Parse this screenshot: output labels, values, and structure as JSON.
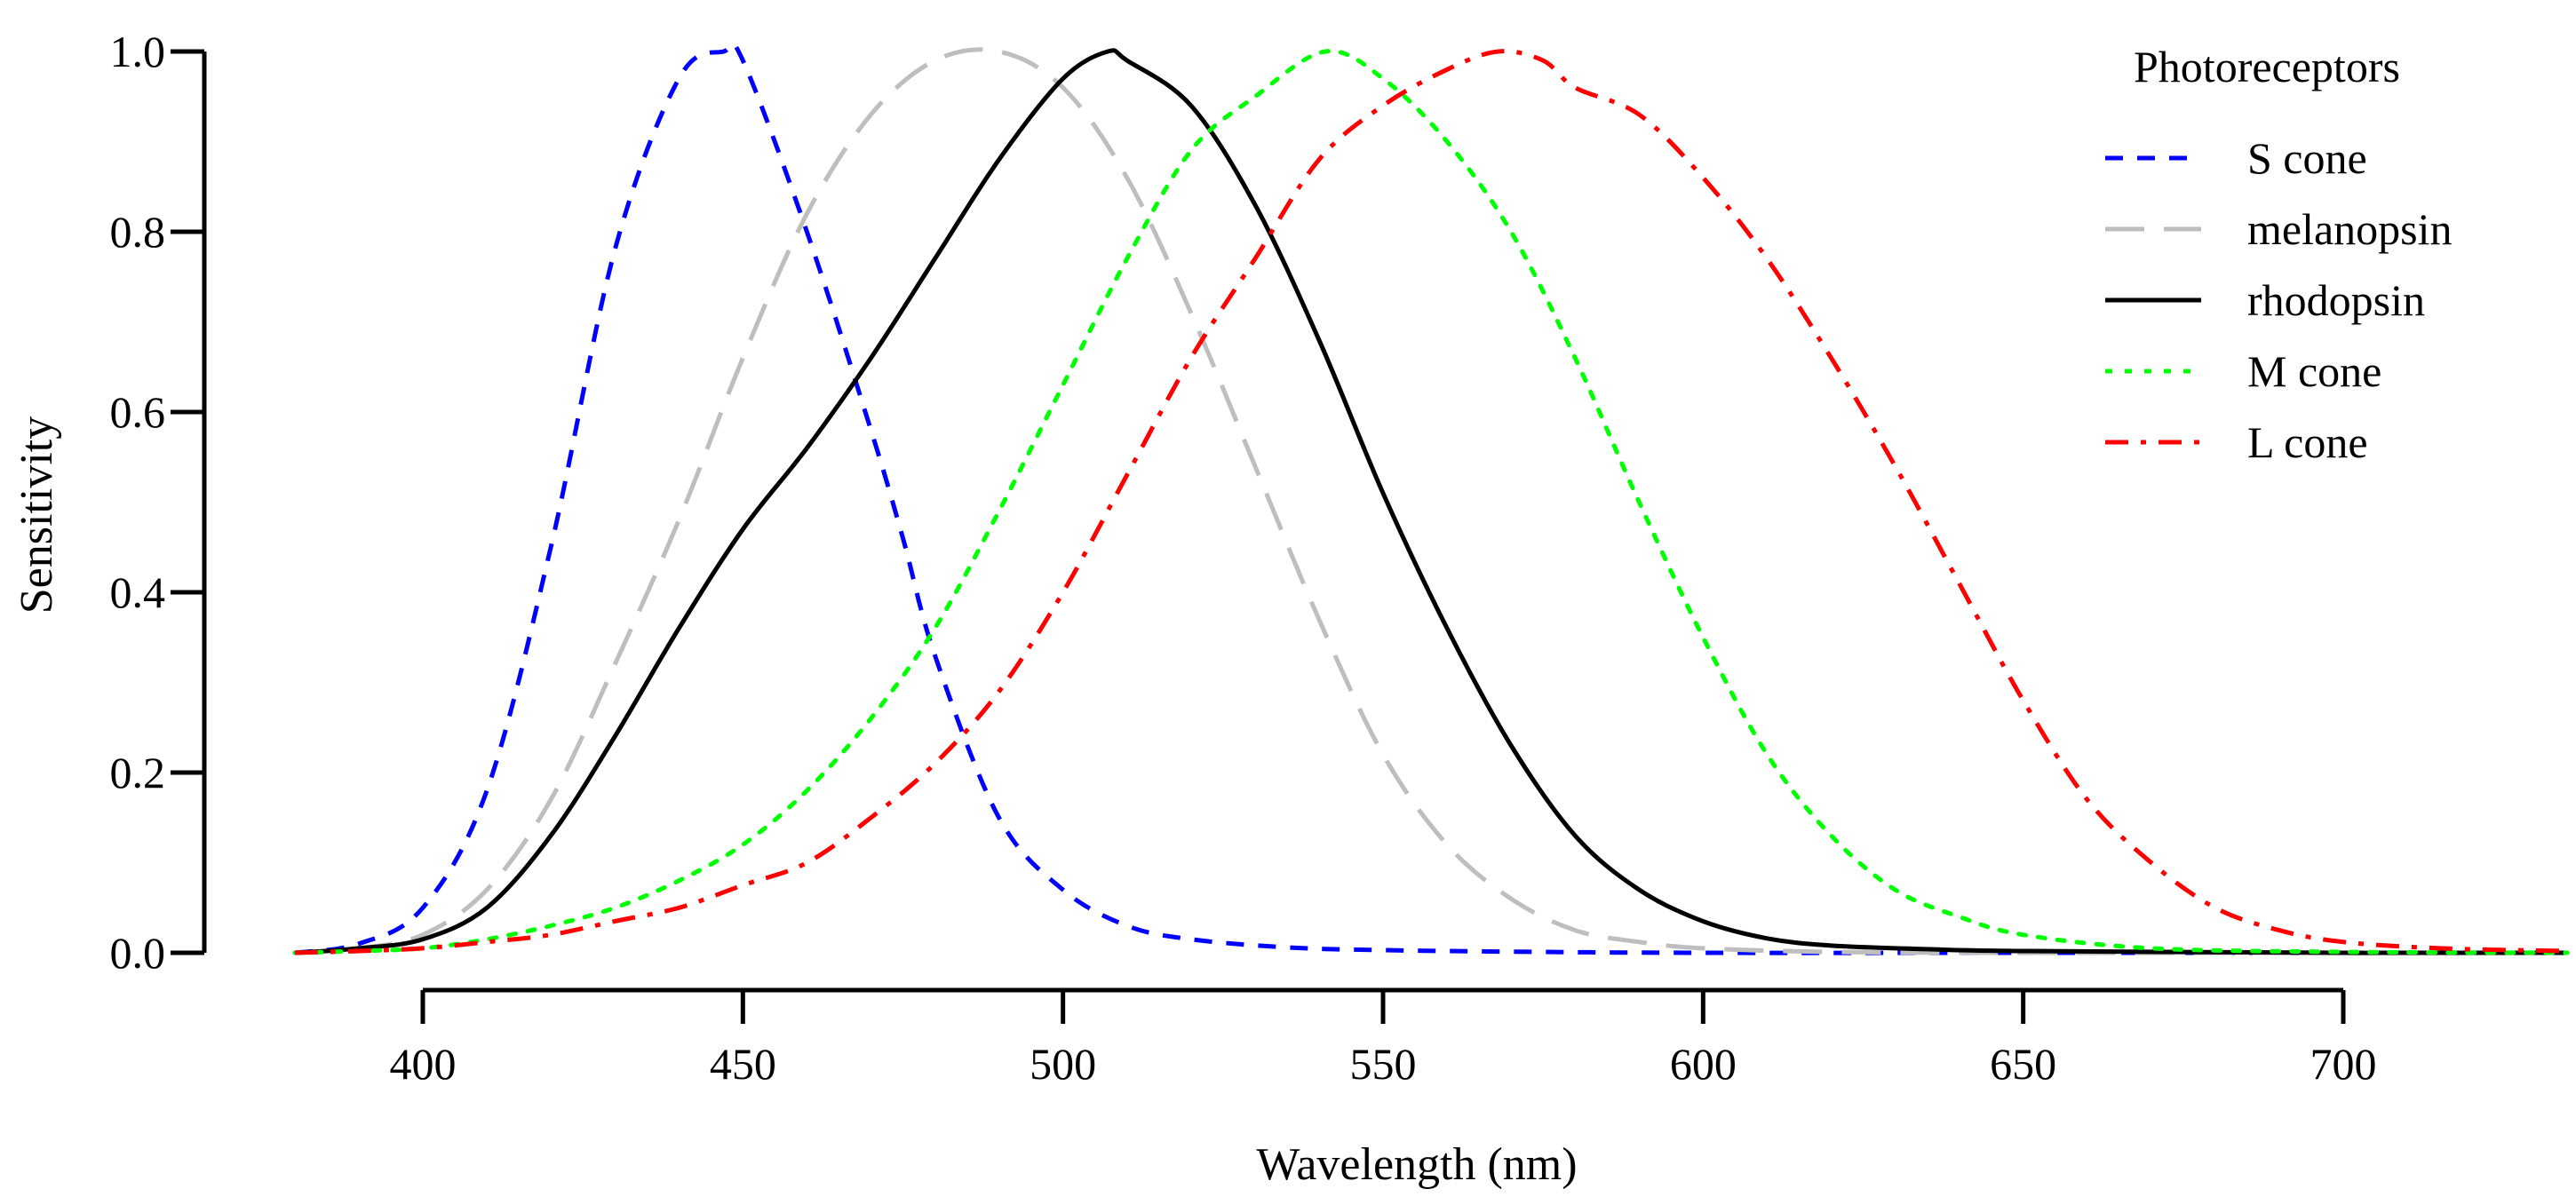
{
  "chart_data": {
    "type": "line",
    "title": "",
    "xlabel": "Wavelength (nm)",
    "ylabel": "Sensitivity",
    "xlim": [
      380,
      735
    ],
    "ylim": [
      0,
      1.0
    ],
    "x_axis_range": [
      400,
      700
    ],
    "xticks": [
      400,
      450,
      500,
      550,
      600,
      650,
      700
    ],
    "xtick_labels": [
      "400",
      "450",
      "500",
      "550",
      "600",
      "650",
      "700"
    ],
    "yticks": [
      0.0,
      0.2,
      0.4,
      0.6,
      0.8,
      1.0
    ],
    "ytick_labels": [
      "0.0",
      "0.2",
      "0.4",
      "0.6",
      "0.8",
      "1.0"
    ],
    "grid": false,
    "legend": {
      "title": "Photoreceptors",
      "position": "top-right"
    },
    "series": [
      {
        "name": "S cone",
        "color": "#0000ff",
        "style": "dashed",
        "peak_nm": 447,
        "x": [
          380,
          390,
          400,
          410,
          420,
          430,
          440,
          447,
          450,
          460,
          470,
          475,
          480,
          490,
          500,
          510,
          520,
          535,
          550,
          575,
          600,
          650,
          700,
          735
        ],
        "y": [
          0.0,
          0.01,
          0.05,
          0.18,
          0.45,
          0.78,
          0.97,
          1.0,
          0.99,
          0.8,
          0.58,
          0.46,
          0.33,
          0.15,
          0.07,
          0.03,
          0.015,
          0.006,
          0.003,
          0.001,
          0.0,
          0.0,
          0.0,
          0.0
        ]
      },
      {
        "name": "melanopsin",
        "color": "#bebebe",
        "style": "longdash",
        "peak_nm": 490,
        "x": [
          380,
          390,
          400,
          410,
          420,
          430,
          440,
          450,
          460,
          470,
          480,
          490,
          500,
          510,
          520,
          530,
          540,
          550,
          560,
          570,
          580,
          590,
          600,
          620,
          650,
          700,
          735
        ],
        "y": [
          0.0,
          0.005,
          0.02,
          0.07,
          0.17,
          0.32,
          0.48,
          0.66,
          0.82,
          0.93,
          0.99,
          1.0,
          0.96,
          0.86,
          0.71,
          0.54,
          0.37,
          0.22,
          0.12,
          0.06,
          0.025,
          0.012,
          0.005,
          0.001,
          0.0,
          0.0,
          0.0
        ]
      },
      {
        "name": "rhodopsin",
        "color": "#000000",
        "style": "solid",
        "peak_nm": 507,
        "x": [
          380,
          390,
          400,
          410,
          420,
          430,
          440,
          450,
          460,
          470,
          480,
          490,
          500,
          507,
          510,
          520,
          530,
          540,
          550,
          560,
          570,
          580,
          590,
          600,
          610,
          620,
          635,
          650,
          700,
          735
        ],
        "y": [
          0.0,
          0.005,
          0.015,
          0.05,
          0.13,
          0.24,
          0.36,
          0.47,
          0.56,
          0.66,
          0.77,
          0.88,
          0.97,
          1.0,
          0.99,
          0.94,
          0.83,
          0.68,
          0.51,
          0.36,
          0.23,
          0.13,
          0.07,
          0.035,
          0.016,
          0.008,
          0.004,
          0.002,
          0.0,
          0.0
        ]
      },
      {
        "name": "M cone",
        "color": "#00ff00",
        "style": "dotted",
        "peak_nm": 541,
        "x": [
          380,
          390,
          400,
          410,
          420,
          430,
          440,
          450,
          460,
          470,
          480,
          490,
          500,
          510,
          520,
          530,
          541,
          550,
          560,
          570,
          580,
          590,
          600,
          610,
          620,
          630,
          640,
          650,
          670,
          700,
          735
        ],
        "y": [
          0.0,
          0.002,
          0.005,
          0.015,
          0.03,
          0.05,
          0.08,
          0.12,
          0.18,
          0.26,
          0.36,
          0.49,
          0.63,
          0.77,
          0.89,
          0.95,
          1.0,
          0.97,
          0.9,
          0.8,
          0.66,
          0.5,
          0.35,
          0.22,
          0.13,
          0.07,
          0.04,
          0.02,
          0.005,
          0.001,
          0.0
        ]
      },
      {
        "name": "L cone",
        "color": "#ff0000",
        "style": "dashdot",
        "peak_nm": 568,
        "x": [
          380,
          390,
          400,
          410,
          420,
          430,
          440,
          450,
          460,
          470,
          480,
          490,
          500,
          510,
          520,
          530,
          540,
          550,
          560,
          568,
          575,
          580,
          590,
          600,
          610,
          620,
          630,
          640,
          650,
          660,
          670,
          680,
          690,
          700,
          715,
          735
        ],
        "y": [
          0.0,
          0.002,
          0.005,
          0.012,
          0.02,
          0.035,
          0.05,
          0.075,
          0.1,
          0.15,
          0.21,
          0.29,
          0.4,
          0.53,
          0.66,
          0.77,
          0.88,
          0.94,
          0.98,
          1.0,
          0.99,
          0.96,
          0.93,
          0.86,
          0.77,
          0.66,
          0.54,
          0.41,
          0.28,
          0.17,
          0.1,
          0.05,
          0.025,
          0.012,
          0.005,
          0.002
        ]
      }
    ]
  }
}
